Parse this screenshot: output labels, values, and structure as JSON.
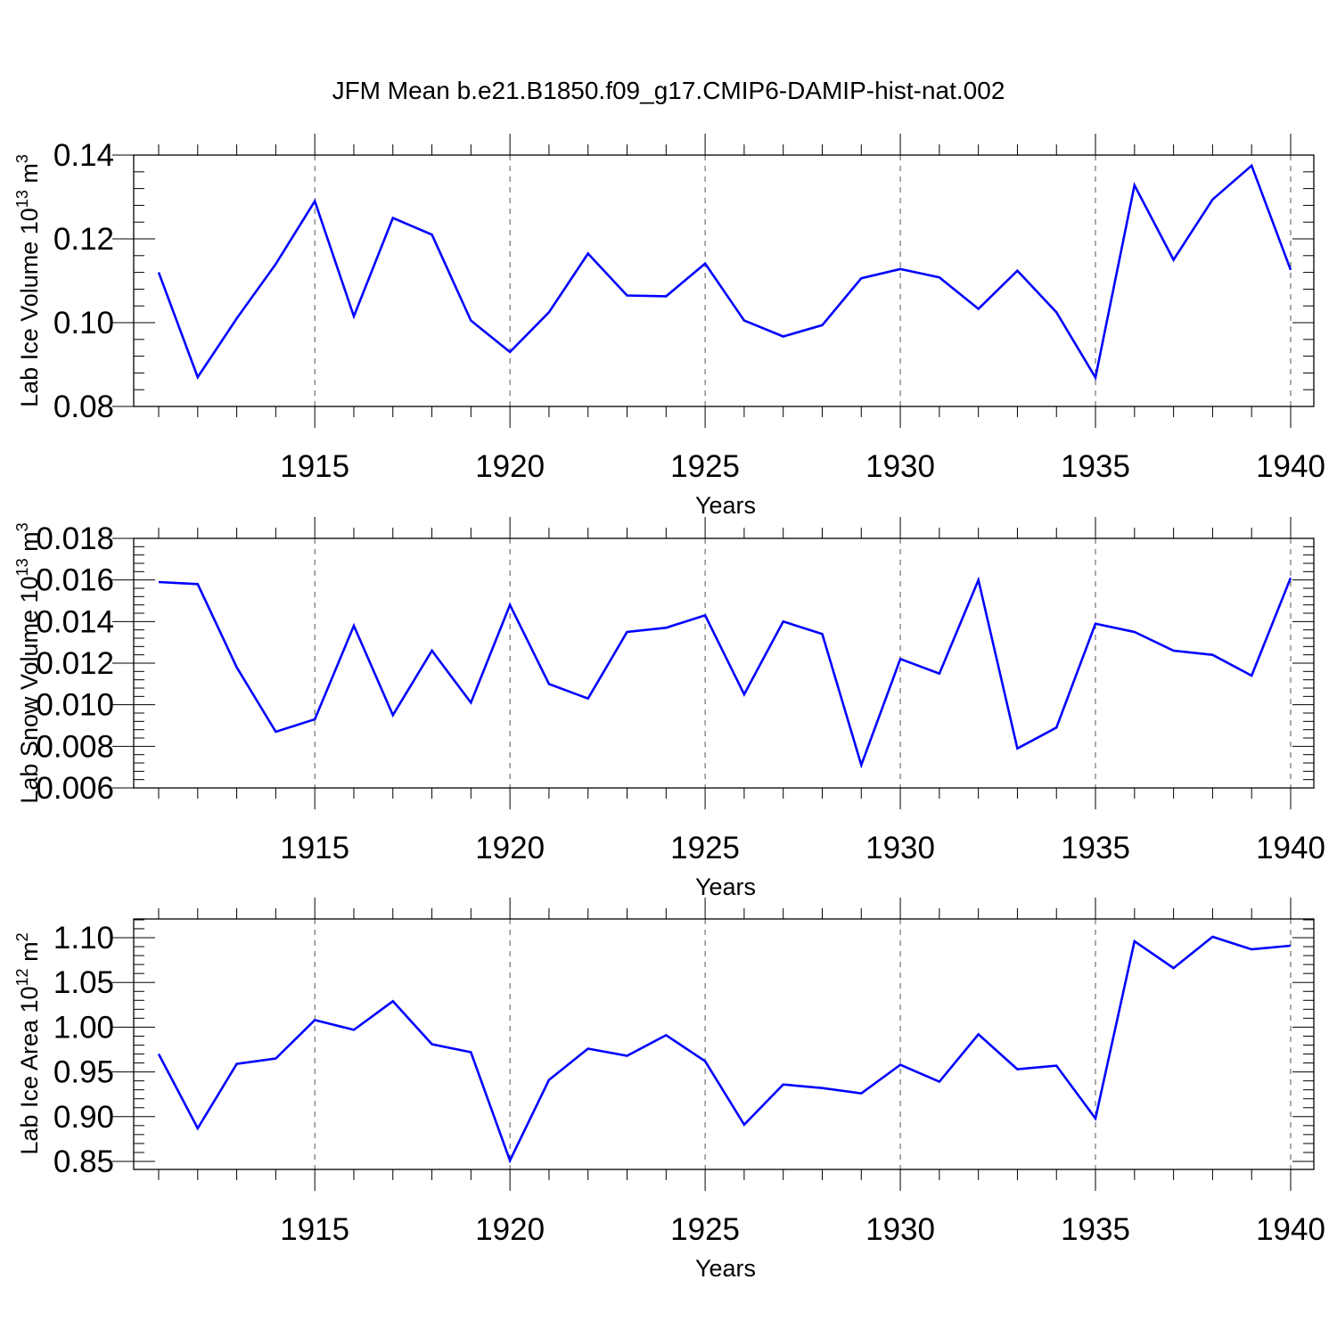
{
  "title": "JFM Mean b.e21.B1850.f09_g17.CMIP6-DAMIP-hist-nat.002",
  "colors": {
    "series": "#0000ff",
    "grid": "#555555"
  },
  "chart_data": [
    {
      "type": "line",
      "xlabel": "Years",
      "ylabel": {
        "main": "Lab Ice Volume 10",
        "exp": "13",
        "unit": " m",
        "unit_exp": "3"
      },
      "xlim": [
        1911,
        1940
      ],
      "ylim": [
        0.08,
        0.14
      ],
      "yticks": [
        "0.08",
        "0.10",
        "0.12",
        "0.14"
      ],
      "xticks": [
        "1915",
        "1920",
        "1925",
        "1930",
        "1935",
        "1940"
      ],
      "grid": "vertical dashed at major x ticks",
      "x": [
        1911,
        1912,
        1913,
        1914,
        1915,
        1916,
        1917,
        1918,
        1919,
        1920,
        1921,
        1922,
        1923,
        1924,
        1925,
        1926,
        1927,
        1928,
        1929,
        1930,
        1931,
        1932,
        1933,
        1934,
        1935,
        1936,
        1937,
        1938,
        1939,
        1940
      ],
      "values": [
        0.112,
        0.087,
        0.101,
        0.114,
        0.129,
        0.1015,
        0.125,
        0.121,
        0.1005,
        0.093,
        0.1025,
        0.1165,
        0.1065,
        0.1063,
        0.1141,
        0.1005,
        0.0967,
        0.0994,
        0.1106,
        0.1128,
        0.1108,
        0.1033,
        0.1124,
        0.1025,
        0.0869,
        0.1328,
        0.115,
        0.1294,
        0.1375,
        0.1126
      ]
    },
    {
      "type": "line",
      "xlabel": "Years",
      "ylabel": {
        "main": "Lab Snow Volume 10",
        "exp": "13",
        "unit": " m",
        "unit_exp": "3"
      },
      "xlim": [
        1911,
        1940
      ],
      "ylim": [
        0.006,
        0.018
      ],
      "yticks": [
        "0.006",
        "0.008",
        "0.010",
        "0.012",
        "0.014",
        "0.016",
        "0.018"
      ],
      "xticks": [
        "1915",
        "1920",
        "1925",
        "1930",
        "1935",
        "1940"
      ],
      "grid": "vertical dashed at major x ticks",
      "x": [
        1911,
        1912,
        1913,
        1914,
        1915,
        1916,
        1917,
        1918,
        1919,
        1920,
        1921,
        1922,
        1923,
        1924,
        1925,
        1926,
        1927,
        1928,
        1929,
        1930,
        1931,
        1932,
        1933,
        1934,
        1935,
        1936,
        1937,
        1938,
        1939,
        1940
      ],
      "values": [
        0.0159,
        0.0158,
        0.0118,
        0.0087,
        0.0093,
        0.0138,
        0.0095,
        0.0126,
        0.0101,
        0.0148,
        0.011,
        0.0103,
        0.0135,
        0.0137,
        0.0143,
        0.0105,
        0.014,
        0.0134,
        0.0071,
        0.0122,
        0.0115,
        0.016,
        0.0079,
        0.0089,
        0.0139,
        0.0135,
        0.0126,
        0.0124,
        0.0114,
        0.0161
      ]
    },
    {
      "type": "line",
      "xlabel": "Years",
      "ylabel": {
        "main": "Lab Ice Area 10",
        "exp": "12",
        "unit": " m",
        "unit_exp": "2"
      },
      "xlim": [
        1911,
        1940
      ],
      "ylim": [
        0.842,
        1.12
      ],
      "yticks": [
        "0.85",
        "0.90",
        "0.95",
        "1.00",
        "1.05",
        "1.10"
      ],
      "ytick_values": [
        0.85,
        0.9,
        0.95,
        1.0,
        1.05,
        1.1
      ],
      "xticks": [
        "1915",
        "1920",
        "1925",
        "1930",
        "1935",
        "1940"
      ],
      "grid": "vertical dashed at major x ticks",
      "x": [
        1911,
        1912,
        1913,
        1914,
        1915,
        1916,
        1917,
        1918,
        1919,
        1920,
        1921,
        1922,
        1923,
        1924,
        1925,
        1926,
        1927,
        1928,
        1929,
        1930,
        1931,
        1932,
        1933,
        1934,
        1935,
        1936,
        1937,
        1938,
        1939,
        1940
      ],
      "values": [
        0.97,
        0.887,
        0.959,
        0.965,
        1.008,
        0.997,
        1.029,
        0.981,
        0.972,
        0.851,
        0.941,
        0.976,
        0.968,
        0.991,
        0.962,
        0.891,
        0.936,
        0.932,
        0.926,
        0.958,
        0.939,
        0.992,
        0.953,
        0.957,
        0.898,
        1.096,
        1.066,
        1.101,
        1.087,
        1.091
      ]
    }
  ]
}
